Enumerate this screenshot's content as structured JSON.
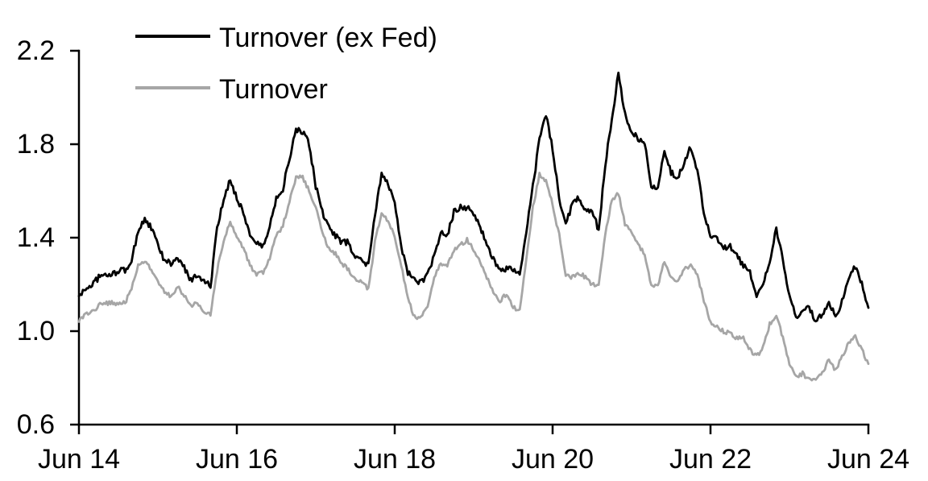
{
  "chart_data": {
    "type": "line",
    "title": "",
    "grid": false,
    "background": "#ffffff",
    "axis_color": "#000000",
    "legend": {
      "position": "top-left-inside"
    },
    "x_axis": {
      "tick_labels": [
        "Jun 14",
        "Jun 16",
        "Jun 18",
        "Jun 20",
        "Jun 22",
        "Jun 24"
      ],
      "start": "Jun 2014",
      "end": "Jun 2024",
      "tick_interval": "2 years"
    },
    "y_axis": {
      "tick_labels_top_to_bottom": [
        "2.2",
        "1.8",
        "1.4",
        "1.0",
        "0.6"
      ],
      "min": 0.6,
      "max": 2.2,
      "tick_step": 0.4
    },
    "sampling": "monthly, Jun 2014 through Jun 2024, 121 points per series",
    "series": [
      {
        "name": "Turnover (ex Fed)",
        "color": "#000000",
        "values": [
          1.15,
          1.18,
          1.2,
          1.23,
          1.24,
          1.24,
          1.26,
          1.26,
          1.3,
          1.43,
          1.48,
          1.44,
          1.37,
          1.3,
          1.29,
          1.31,
          1.27,
          1.22,
          1.24,
          1.22,
          1.19,
          1.44,
          1.56,
          1.65,
          1.57,
          1.51,
          1.41,
          1.38,
          1.36,
          1.45,
          1.57,
          1.61,
          1.74,
          1.86,
          1.85,
          1.8,
          1.62,
          1.51,
          1.44,
          1.41,
          1.38,
          1.38,
          1.31,
          1.31,
          1.28,
          1.5,
          1.67,
          1.63,
          1.56,
          1.36,
          1.25,
          1.22,
          1.21,
          1.24,
          1.32,
          1.42,
          1.41,
          1.51,
          1.53,
          1.53,
          1.5,
          1.45,
          1.36,
          1.31,
          1.26,
          1.27,
          1.26,
          1.24,
          1.42,
          1.62,
          1.82,
          1.93,
          1.78,
          1.57,
          1.45,
          1.55,
          1.57,
          1.52,
          1.52,
          1.43,
          1.71,
          1.91,
          2.1,
          1.93,
          1.86,
          1.82,
          1.81,
          1.61,
          1.62,
          1.78,
          1.68,
          1.65,
          1.72,
          1.79,
          1.69,
          1.51,
          1.41,
          1.4,
          1.36,
          1.36,
          1.32,
          1.28,
          1.26,
          1.14,
          1.2,
          1.29,
          1.44,
          1.31,
          1.15,
          1.06,
          1.09,
          1.1,
          1.04,
          1.07,
          1.13,
          1.06,
          1.13,
          1.22,
          1.28,
          1.2,
          1.1
        ]
      },
      {
        "name": "Turnover",
        "color": "#a6a6a6",
        "values": [
          1.04,
          1.07,
          1.08,
          1.11,
          1.12,
          1.12,
          1.12,
          1.12,
          1.18,
          1.28,
          1.3,
          1.26,
          1.21,
          1.17,
          1.15,
          1.19,
          1.15,
          1.11,
          1.12,
          1.08,
          1.07,
          1.26,
          1.38,
          1.47,
          1.4,
          1.36,
          1.28,
          1.24,
          1.25,
          1.31,
          1.41,
          1.45,
          1.56,
          1.66,
          1.66,
          1.6,
          1.53,
          1.42,
          1.35,
          1.33,
          1.29,
          1.26,
          1.22,
          1.21,
          1.18,
          1.38,
          1.51,
          1.47,
          1.41,
          1.28,
          1.14,
          1.06,
          1.06,
          1.11,
          1.23,
          1.29,
          1.28,
          1.35,
          1.37,
          1.39,
          1.35,
          1.3,
          1.23,
          1.17,
          1.13,
          1.16,
          1.1,
          1.09,
          1.3,
          1.53,
          1.67,
          1.64,
          1.54,
          1.41,
          1.24,
          1.23,
          1.25,
          1.23,
          1.2,
          1.19,
          1.42,
          1.56,
          1.59,
          1.46,
          1.42,
          1.37,
          1.33,
          1.19,
          1.19,
          1.3,
          1.23,
          1.21,
          1.27,
          1.28,
          1.24,
          1.13,
          1.04,
          1.02,
          1.0,
          0.99,
          0.97,
          0.97,
          0.92,
          0.89,
          0.93,
          1.03,
          1.07,
          0.97,
          0.86,
          0.8,
          0.82,
          0.79,
          0.8,
          0.82,
          0.88,
          0.83,
          0.89,
          0.95,
          0.98,
          0.92,
          0.86
        ]
      }
    ]
  }
}
